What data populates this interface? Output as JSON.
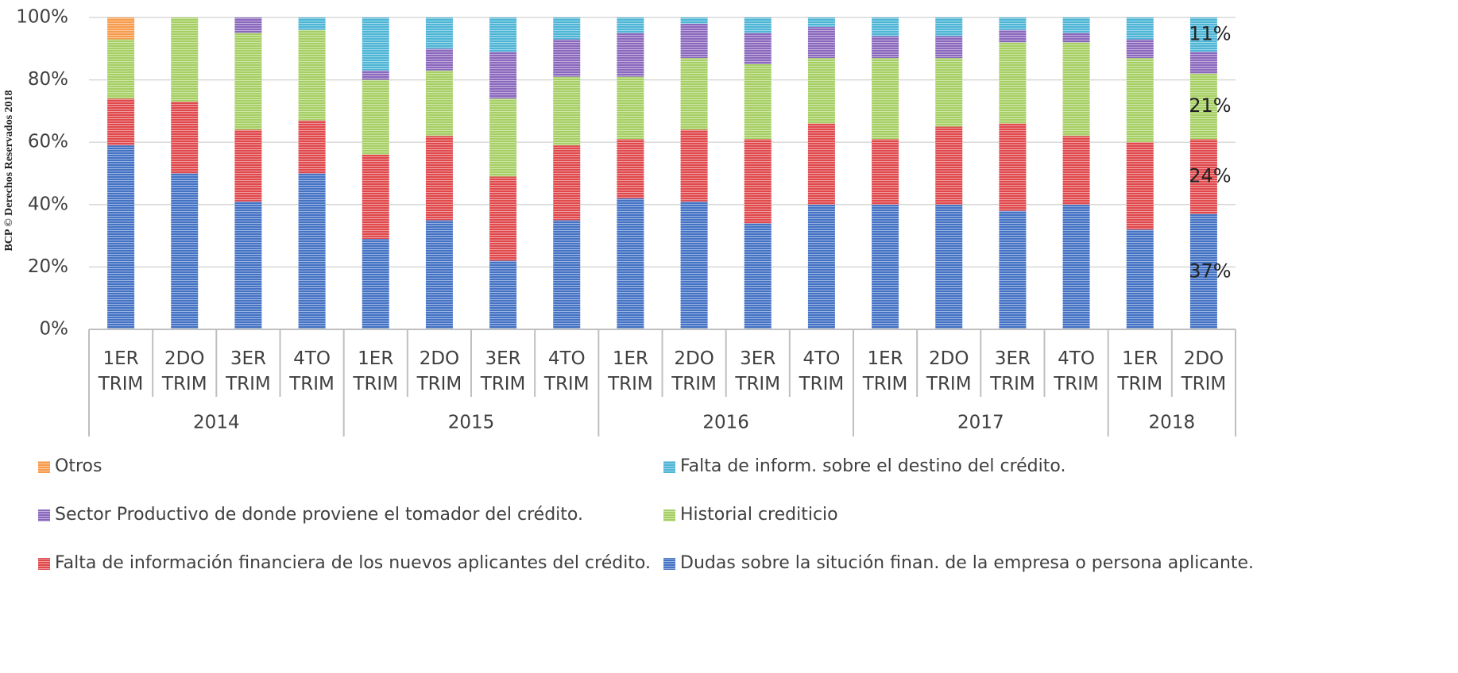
{
  "chart_data": {
    "type": "stacked_bar",
    "side_note": "BCP © Derechos Reservados 2018",
    "categories": [
      "1ER TRIM",
      "2DO TRIM",
      "3ER TRIM",
      "4TO TRIM",
      "1ER TRIM",
      "2DO TRIM",
      "3ER TRIM",
      "4TO TRIM",
      "1ER TRIM",
      "2DO TRIM",
      "3ER TRIM",
      "4TO TRIM",
      "1ER TRIM",
      "2DO TRIM",
      "3ER TRIM",
      "4TO TRIM",
      "1ER TRIM",
      "2DO TRIM"
    ],
    "category_groups": [
      {
        "label": "2014",
        "count": 4
      },
      {
        "label": "2015",
        "count": 4
      },
      {
        "label": "2016",
        "count": 4
      },
      {
        "label": "2017",
        "count": 4
      },
      {
        "label": "2018",
        "count": 2
      }
    ],
    "series": [
      {
        "name": "Dudas sobre la situción finan. de la empresa o persona aplicante.",
        "color": "#4472c4",
        "values": [
          59,
          50,
          41,
          50,
          29,
          35,
          22,
          35,
          42,
          41,
          34,
          40,
          40,
          40,
          38,
          40,
          32,
          37
        ],
        "value_labels": [
          null,
          null,
          null,
          null,
          null,
          null,
          null,
          null,
          null,
          null,
          null,
          null,
          null,
          null,
          null,
          null,
          null,
          "37%"
        ]
      },
      {
        "name": "Falta de información financiera de los nuevos aplicantes del crédito.",
        "color": "#e0484c",
        "values": [
          15,
          23,
          23,
          17,
          27,
          27,
          27,
          24,
          19,
          23,
          27,
          26,
          21,
          25,
          28,
          22,
          28,
          24
        ],
        "value_labels": [
          null,
          null,
          null,
          null,
          null,
          null,
          null,
          null,
          null,
          null,
          null,
          null,
          null,
          null,
          null,
          null,
          null,
          "24%"
        ]
      },
      {
        "name": "Historial crediticio",
        "color": "#a6cf63",
        "values": [
          19,
          27,
          31,
          29,
          24,
          21,
          25,
          22,
          20,
          23,
          24,
          21,
          26,
          22,
          26,
          30,
          27,
          21
        ],
        "value_labels": [
          null,
          null,
          null,
          null,
          null,
          null,
          null,
          null,
          null,
          null,
          null,
          null,
          null,
          null,
          null,
          null,
          null,
          "21%"
        ]
      },
      {
        "name": "Sector Productivo de donde proviene el tomador del crédito.",
        "color": "#8a68bd",
        "values": [
          0,
          0,
          5,
          0,
          3,
          7,
          15,
          12,
          14,
          11,
          10,
          10,
          7,
          7,
          4,
          3,
          6,
          7
        ]
      },
      {
        "name": "Falta de inform. sobre el destino del crédito.",
        "color": "#4db5d6",
        "values": [
          0,
          0,
          0,
          4,
          17,
          10,
          11,
          7,
          5,
          2,
          5,
          3,
          6,
          6,
          4,
          5,
          7,
          11
        ],
        "value_labels": [
          null,
          null,
          null,
          null,
          null,
          null,
          null,
          null,
          null,
          null,
          null,
          null,
          null,
          null,
          null,
          null,
          null,
          "11%"
        ]
      },
      {
        "name": "Otros",
        "color": "#f79b4c",
        "values": [
          7,
          0,
          0,
          0,
          0,
          0,
          0,
          0,
          0,
          0,
          0,
          0,
          0,
          0,
          0,
          0,
          0,
          0
        ]
      }
    ],
    "ylim": [
      0,
      100
    ],
    "yticks": [
      {
        "value": 0,
        "label": "0%"
      },
      {
        "value": 20,
        "label": "20%"
      },
      {
        "value": 40,
        "label": "40%"
      },
      {
        "value": 60,
        "label": "60%"
      },
      {
        "value": 80,
        "label": "80%"
      },
      {
        "value": 100,
        "label": "100%"
      }
    ],
    "grid": true,
    "legend": "bottom"
  }
}
